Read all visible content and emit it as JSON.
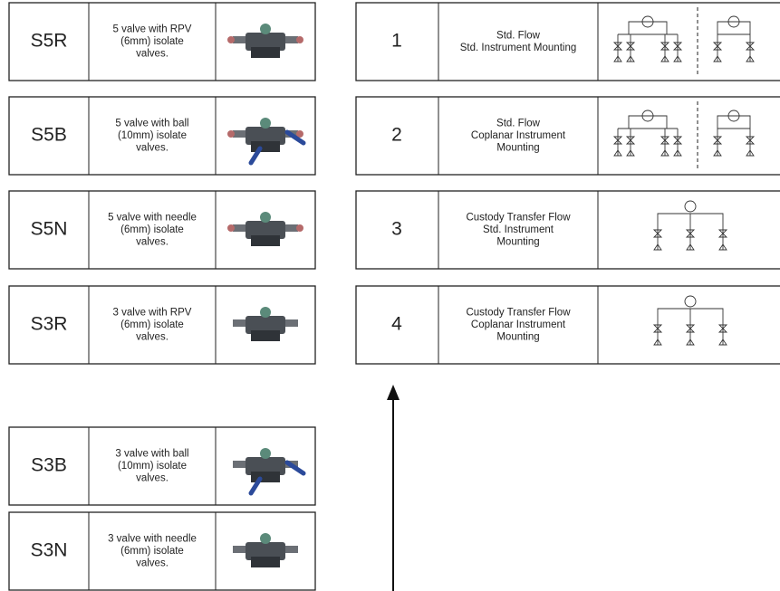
{
  "manifolds": [
    {
      "code": "S5R",
      "description": [
        "5 valve with RPV",
        "(6mm) isolate",
        "valves."
      ]
    },
    {
      "code": "S5B",
      "description": [
        "5 valve with ball",
        "(10mm) isolate",
        "valves."
      ]
    },
    {
      "code": "S5N",
      "description": [
        "5 valve with needle",
        "(6mm) isolate",
        "valves."
      ]
    },
    {
      "code": "S3R",
      "description": [
        "3 valve with RPV",
        "(6mm) isolate",
        "valves."
      ]
    },
    {
      "code": "S3B",
      "description": [
        "3 valve with ball",
        "(10mm) isolate",
        "valves."
      ]
    },
    {
      "code": "S3N",
      "description": [
        "3 valve with needle",
        "(6mm) isolate",
        "valves."
      ]
    }
  ],
  "configurations": [
    {
      "number": "1",
      "description": [
        "Std. Flow",
        "Std. Instrument Mounting"
      ]
    },
    {
      "number": "2",
      "description": [
        "Std. Flow",
        "Coplanar Instrument",
        "Mounting"
      ]
    },
    {
      "number": "3",
      "description": [
        "Custody Transfer Flow",
        "Std. Instrument",
        "Mounting"
      ]
    },
    {
      "number": "4",
      "description": [
        "Custody Transfer Flow",
        "Coplanar Instrument",
        "Mounting"
      ]
    }
  ]
}
